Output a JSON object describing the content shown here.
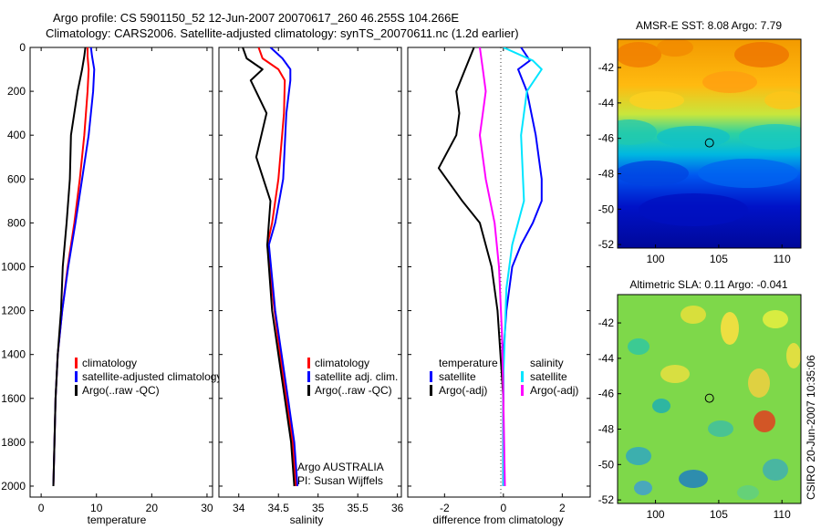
{
  "figure": {
    "title_line1": "Argo profile: CS 5901150_52 12-Jun-2007 20070617_260 46.255S 104.266E",
    "title_line2": "Climatology: CARS2006. Satellite-adjusted climatology: synTS_20070611.nc (1.2d earlier)",
    "side_label": "CSIRO 20-Jun-2007 10:35:06",
    "argo_footer_line1": "Argo AUSTRALIA",
    "argo_footer_line2": "PI: Susan Wijffels"
  },
  "colors": {
    "climatology": "#ff0000",
    "satellite": "#0000ff",
    "argo": "#000000",
    "salinity_satellite": "#00e5ff",
    "salinity_argo": "#ff00ff"
  },
  "chart_data": [
    {
      "type": "line",
      "id": "temperature",
      "xlabel": "temperature",
      "ylabel": "",
      "xlim": [
        -2,
        31
      ],
      "ylim": [
        2050,
        0
      ],
      "xticks": [
        0,
        10,
        20,
        30
      ],
      "yticks": [
        0,
        200,
        400,
        600,
        800,
        1000,
        1200,
        1400,
        1600,
        1800,
        2000
      ],
      "legend": [
        "climatology",
        "satellite-adjusted climatology",
        "Argo(..raw -QC)"
      ],
      "series": [
        {
          "name": "climatology",
          "color": "#ff0000",
          "x": [
            8.4,
            8.4,
            8.6,
            8.4,
            7.8,
            7.0,
            6.0,
            4.8,
            3.8,
            3.0,
            2.6,
            2.4,
            2.3,
            2.2
          ],
          "y": [
            0,
            40,
            100,
            200,
            400,
            600,
            800,
            1000,
            1200,
            1400,
            1600,
            1800,
            1900,
            2000
          ]
        },
        {
          "name": "satellite-adjusted climatology",
          "color": "#0000ff",
          "x": [
            9.0,
            9.2,
            9.6,
            9.4,
            8.6,
            7.4,
            6.2,
            4.9,
            3.8,
            3.0,
            2.6,
            2.4,
            2.3,
            2.2
          ],
          "y": [
            0,
            40,
            100,
            200,
            400,
            600,
            800,
            1000,
            1200,
            1400,
            1600,
            1800,
            1900,
            2000
          ]
        },
        {
          "name": "Argo(..raw -QC)",
          "color": "#000000",
          "x": [
            8.0,
            7.8,
            7.4,
            6.6,
            5.4,
            5.2,
            4.6,
            3.9,
            3.6,
            3.0,
            2.6,
            2.4,
            2.3,
            2.2
          ],
          "y": [
            0,
            40,
            100,
            200,
            400,
            600,
            800,
            1000,
            1200,
            1400,
            1600,
            1800,
            1900,
            2000
          ]
        }
      ]
    },
    {
      "type": "line",
      "id": "salinity",
      "xlabel": "salinity",
      "ylabel": "",
      "xlim": [
        33.75,
        36.05
      ],
      "ylim": [
        2050,
        0
      ],
      "xticks": [
        34,
        34.5,
        35,
        35.5,
        36
      ],
      "xtick_labels": [
        "34",
        "34.5",
        "35",
        "35.5",
        "36"
      ],
      "legend": [
        "climatology",
        "satellite adj. clim.",
        "Argo(..raw -QC)"
      ],
      "series": [
        {
          "name": "climatology",
          "color": "#ff0000",
          "x": [
            34.25,
            34.3,
            34.5,
            34.58,
            34.57,
            34.5,
            34.42,
            34.36,
            34.45,
            34.52,
            34.6,
            34.68,
            34.72
          ],
          "y": [
            0,
            50,
            100,
            150,
            300,
            600,
            800,
            900,
            1200,
            1400,
            1600,
            1800,
            2000
          ]
        },
        {
          "name": "satellite adj. clim.",
          "color": "#0000ff",
          "x": [
            34.4,
            34.55,
            34.65,
            34.65,
            34.6,
            34.56,
            34.46,
            34.38,
            34.46,
            34.54,
            34.62,
            34.7,
            34.74
          ],
          "y": [
            0,
            50,
            100,
            150,
            300,
            600,
            800,
            900,
            1200,
            1400,
            1600,
            1800,
            2000
          ]
        },
        {
          "name": "Argo(..raw -QC)",
          "color": "#000000",
          "x": [
            34.05,
            34.1,
            34.3,
            34.15,
            34.35,
            34.22,
            34.4,
            34.36,
            34.42,
            34.5,
            34.58,
            34.66,
            34.7
          ],
          "y": [
            0,
            50,
            100,
            150,
            300,
            500,
            700,
            900,
            1200,
            1400,
            1600,
            1800,
            2000
          ]
        }
      ]
    },
    {
      "type": "line",
      "id": "difference",
      "xlabel": "difference from climatology",
      "ylabel": "",
      "xlim": [
        -3.25,
        2.95
      ],
      "ylim": [
        2050,
        0
      ],
      "xticks": [
        -2,
        0,
        2
      ],
      "legend_groups": [
        {
          "heading": "temperature",
          "items": [
            "satellite",
            "Argo(-adj)"
          ]
        },
        {
          "heading": "salinity",
          "items": [
            "satellite",
            "Argo(-adj)"
          ]
        }
      ],
      "series": [
        {
          "group": "temperature",
          "name": "satellite",
          "color": "#0000ff",
          "x": [
            0.6,
            0.9,
            0.5,
            0.8,
            1.1,
            1.3,
            1.3,
            1.0,
            0.6,
            0.3,
            0.1,
            0.0,
            0.0,
            0.0
          ],
          "y": [
            0,
            60,
            100,
            200,
            400,
            600,
            700,
            800,
            900,
            1000,
            1200,
            1400,
            1600,
            2000
          ]
        },
        {
          "group": "temperature",
          "name": "Argo(-adj)",
          "color": "#000000",
          "x": [
            -1.0,
            -1.3,
            -1.6,
            -1.5,
            -1.6,
            -2.2,
            -1.4,
            -0.8,
            -0.4,
            -0.2,
            -0.1,
            0.0,
            0.0
          ],
          "y": [
            0,
            100,
            200,
            300,
            400,
            550,
            700,
            800,
            1000,
            1200,
            1400,
            1600,
            2000
          ]
        },
        {
          "group": "salinity",
          "name": "satellite",
          "color": "#00e5ff",
          "x": [
            0.0,
            1.0,
            1.3,
            0.8,
            0.6,
            0.7,
            0.3,
            0.1,
            0.05,
            0.0,
            0.0
          ],
          "y": [
            0,
            60,
            100,
            200,
            400,
            700,
            900,
            1100,
            1300,
            1500,
            2000
          ]
        },
        {
          "group": "salinity",
          "name": "Argo(-adj)",
          "color": "#ff00ff",
          "x": [
            -0.8,
            -0.7,
            -0.6,
            -0.7,
            -0.8,
            -0.6,
            -0.3,
            -0.15,
            -0.05,
            0.0,
            0.05
          ],
          "y": [
            0,
            100,
            200,
            300,
            400,
            600,
            800,
            1000,
            1300,
            1600,
            2000
          ]
        }
      ]
    },
    {
      "type": "heatmap",
      "id": "sst-map",
      "title": "AMSR-E SST: 8.08 Argo: 7.79",
      "xlim": [
        97,
        111.5
      ],
      "ylim": [
        -52.2,
        -40.4
      ],
      "xticks": [
        100,
        105,
        110
      ],
      "yticks": [
        -42,
        -44,
        -46,
        -48,
        -50,
        -52
      ],
      "marker": {
        "lon": 104.266,
        "lat": -46.255
      }
    },
    {
      "type": "heatmap",
      "id": "sla-map",
      "title": "Altimetric SLA: 0.11  Argo: -0.041",
      "xlim": [
        97,
        111.5
      ],
      "ylim": [
        -52.2,
        -40.4
      ],
      "xticks": [
        100,
        105,
        110
      ],
      "yticks": [
        -42,
        -44,
        -46,
        -48,
        -50,
        -52
      ],
      "marker": {
        "lon": 104.266,
        "lat": -46.255
      }
    }
  ]
}
